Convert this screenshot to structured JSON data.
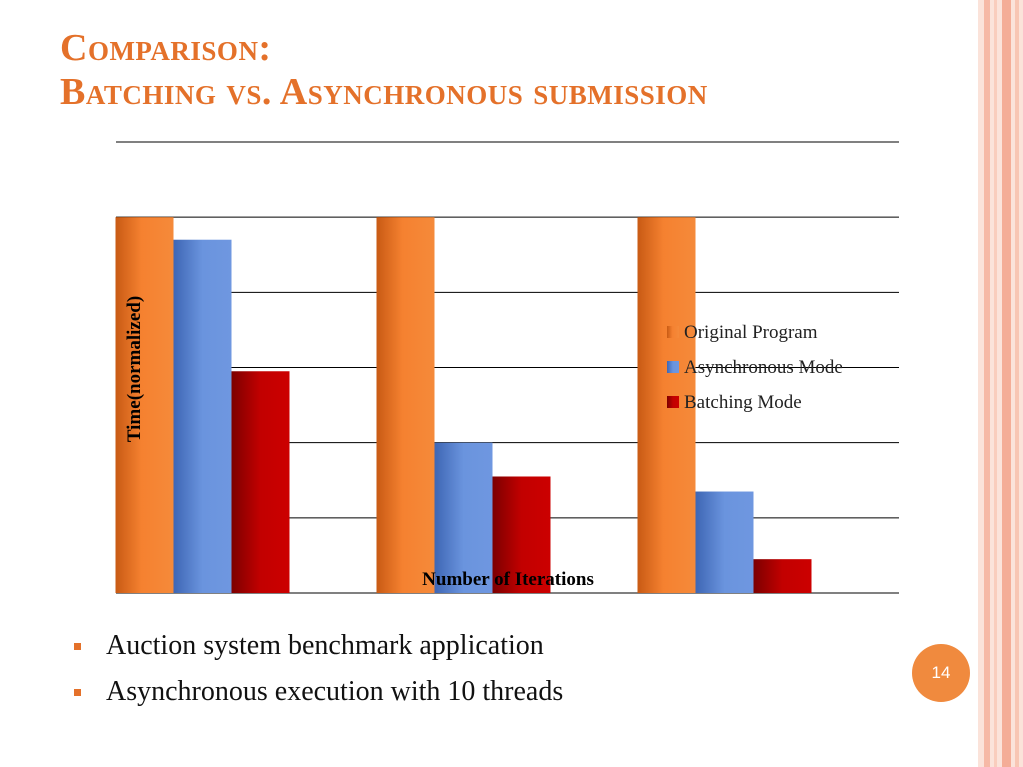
{
  "slide": {
    "title_line1": "Comparison:",
    "title_line2": "Batching vs. Asynchronous submission",
    "bullets": [
      "Auction system benchmark application",
      "Asynchronous execution with 10 threads"
    ],
    "page_number": "14"
  },
  "colors": {
    "accent": "#e4712a",
    "original": "#f07c28",
    "async": "#5b86d6",
    "batch": "#c80000"
  },
  "chart_data": {
    "type": "bar",
    "xlabel": "Number of Iterations",
    "ylabel": "Time(normalized)",
    "categories": [
      "",
      "",
      ""
    ],
    "series": [
      {
        "name": "Original Program",
        "values": [
          1.0,
          1.0,
          1.0
        ]
      },
      {
        "name": "Asynchronous Mode",
        "values": [
          0.94,
          0.4,
          0.27
        ]
      },
      {
        "name": "Batching Mode",
        "values": [
          0.59,
          0.31,
          0.09
        ]
      }
    ],
    "ylim": [
      0,
      1.2
    ],
    "grid": true,
    "legend": "right"
  }
}
